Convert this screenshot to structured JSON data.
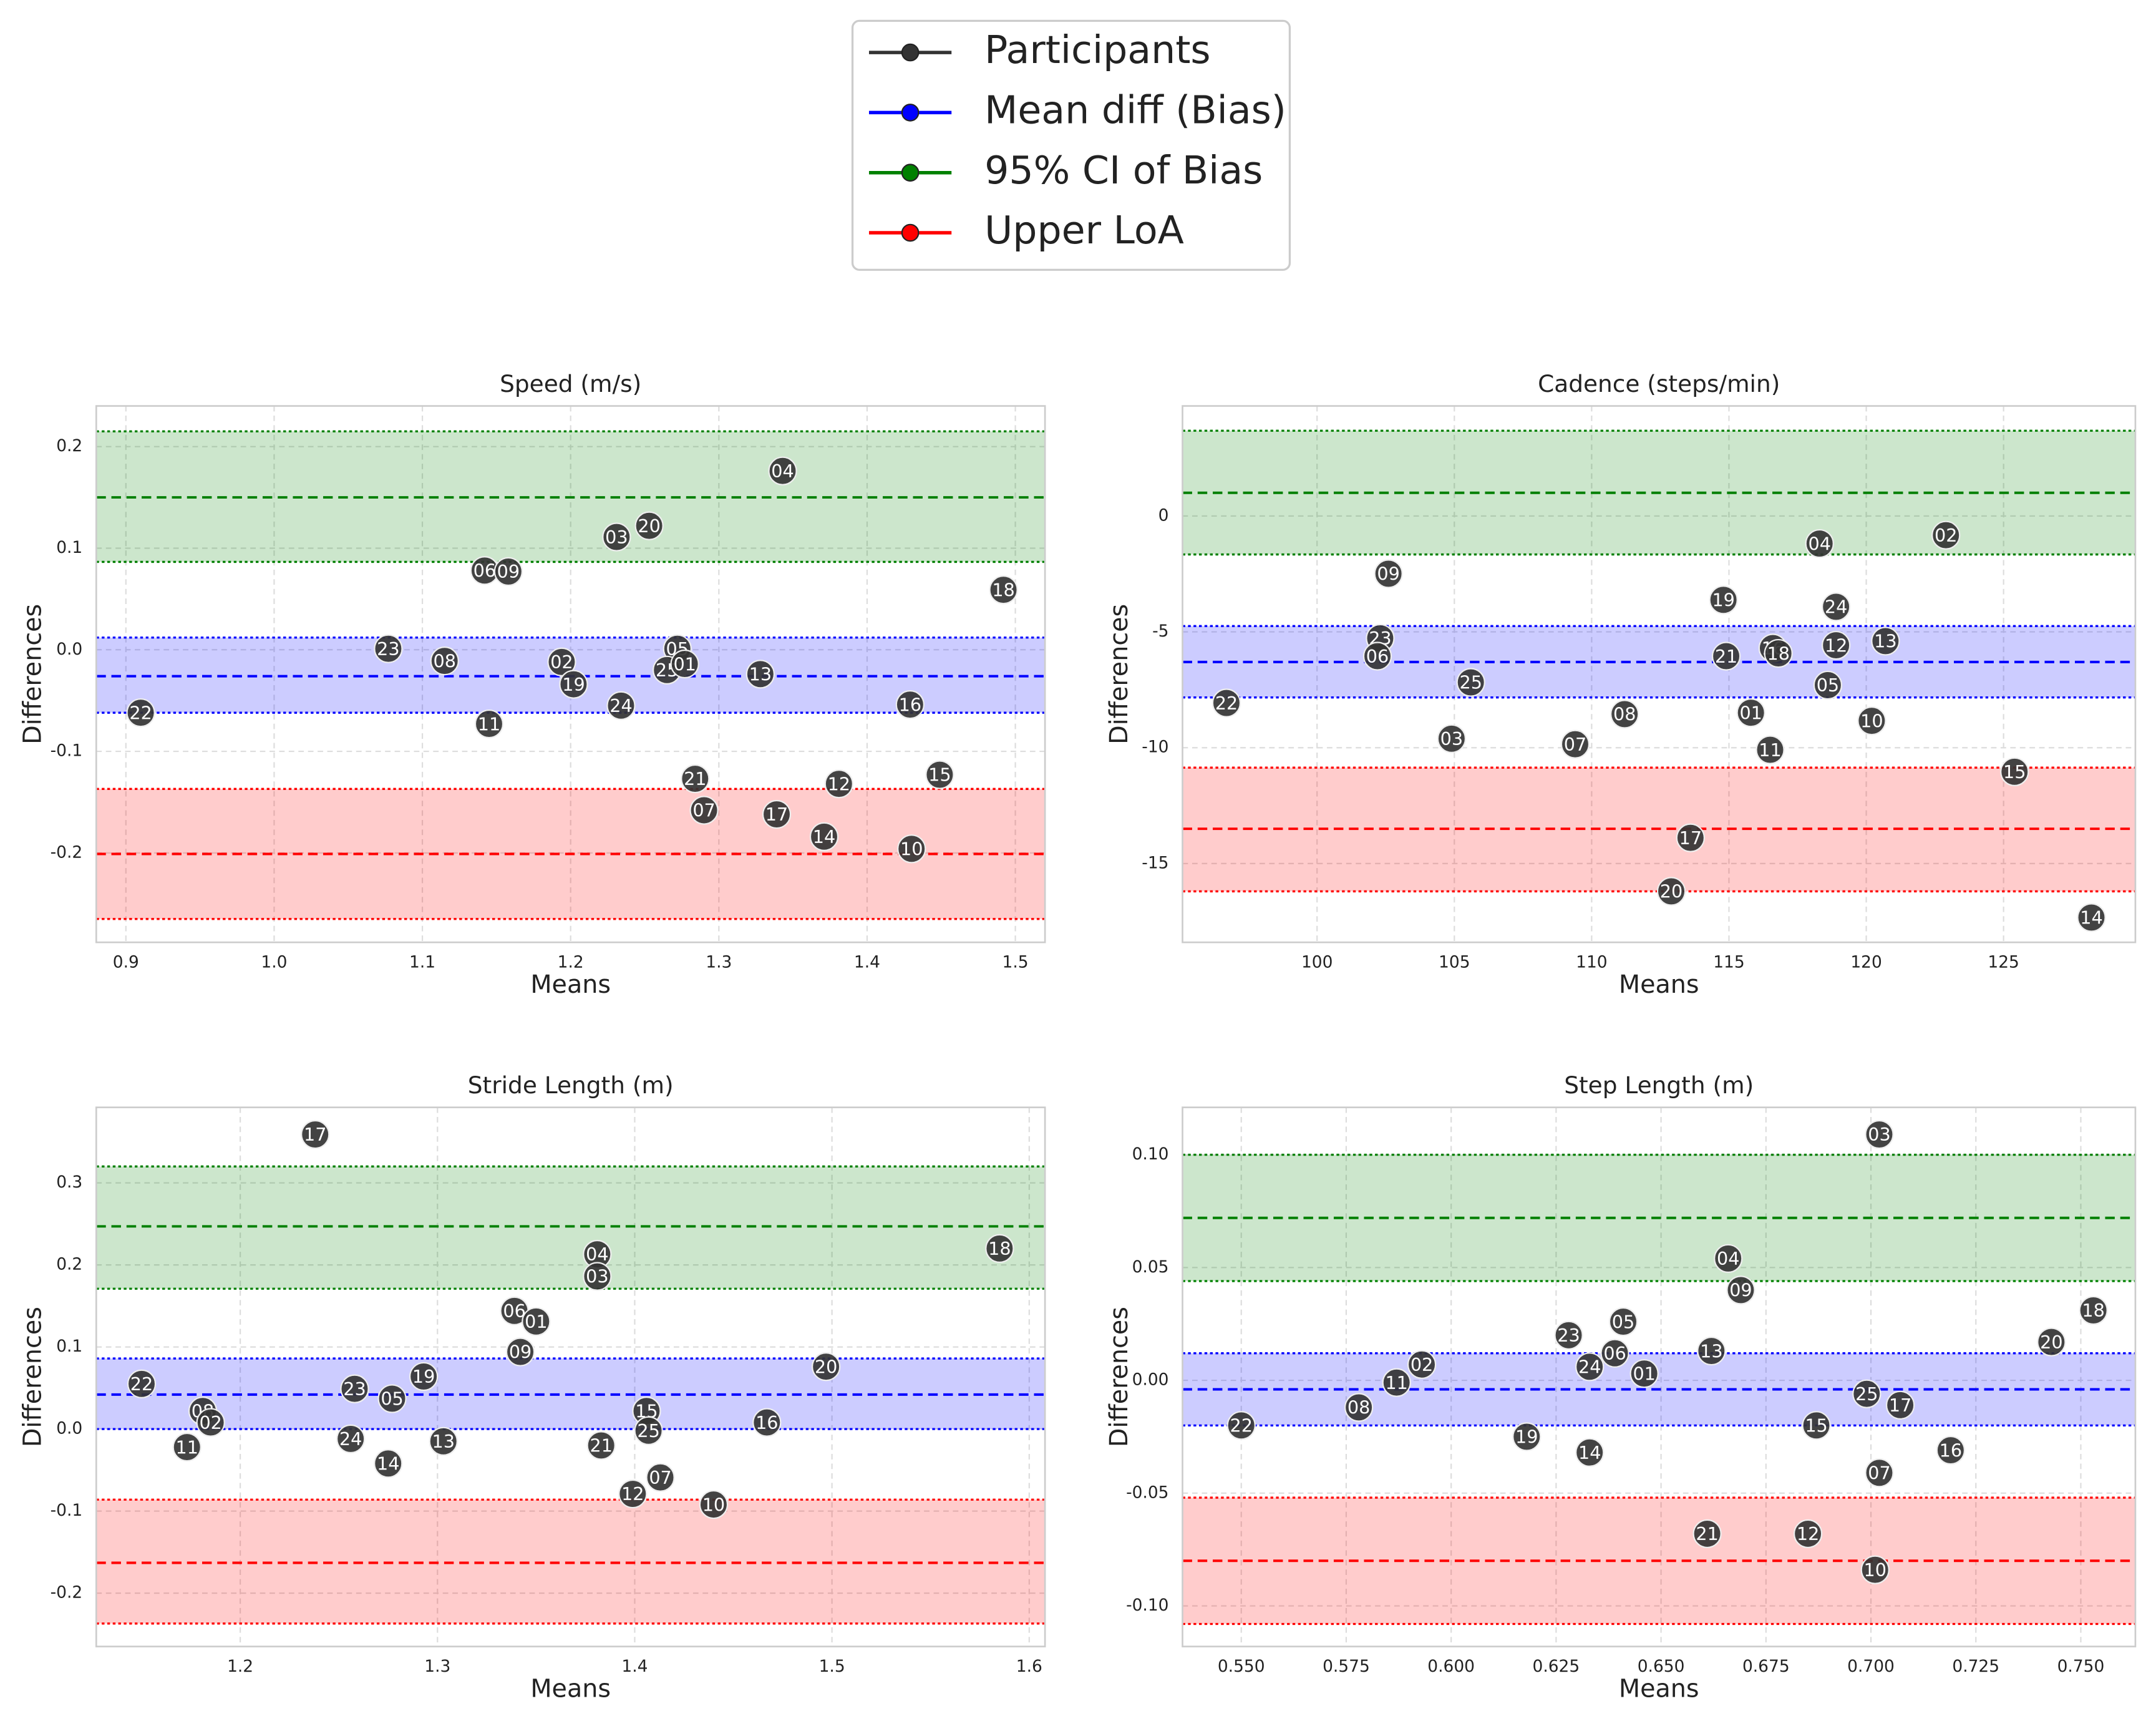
{
  "legend": [
    {
      "name": "Participants",
      "color": "#333333"
    },
    {
      "name": "Mean diff (Bias)",
      "color": "#0000ff"
    },
    {
      "name": "95% CI of Bias",
      "color": "#008000"
    },
    {
      "name": "Upper LoA",
      "color": "#ff0000"
    }
  ],
  "chart_data": [
    {
      "type": "scatter",
      "title": "Speed (m/s)",
      "xlabel": "Means",
      "ylabel": "Differences",
      "xlim": [
        0.88,
        1.52
      ],
      "ylim": [
        -0.288,
        0.24
      ],
      "xticks": [
        0.9,
        {
          "value": 1,
          "label": "1.0"
        },
        1.1,
        1.2,
        1.3,
        1.4,
        1.5
      ],
      "yticks": [
        0.2,
        0.1,
        {
          "value": 0,
          "label": "0.0"
        },
        -0.1,
        -0.2
      ],
      "grid": true,
      "point_color": "#333333",
      "bands": [
        {
          "color": "#008000",
          "lower": 0.0865,
          "mean": 0.15,
          "upper": 0.215
        },
        {
          "color": "#0000ff",
          "lower": -0.062,
          "mean": -0.026,
          "upper": 0.012
        },
        {
          "color": "#ff0000",
          "lower": -0.265,
          "mean": -0.201,
          "upper": -0.137
        }
      ],
      "labels": [
        "22",
        "23",
        "08",
        "06",
        "09",
        "11",
        "02",
        "19",
        "24",
        "03",
        "20",
        "05",
        "25",
        "01",
        "13",
        "04",
        "21",
        "07",
        "17",
        "12",
        "14",
        "10",
        "16",
        "15",
        "18"
      ],
      "x": [
        0.91,
        1.077,
        1.115,
        1.142,
        1.158,
        1.145,
        1.194,
        1.202,
        1.234,
        1.231,
        1.253,
        1.272,
        1.265,
        1.277,
        1.328,
        1.343,
        1.284,
        1.29,
        1.339,
        1.381,
        1.371,
        1.43,
        1.429,
        1.449,
        1.492
      ],
      "y": [
        -0.062,
        0.001,
        -0.011,
        0.078,
        0.077,
        -0.073,
        -0.012,
        -0.034,
        -0.055,
        0.111,
        0.122,
        0.001,
        -0.02,
        -0.014,
        -0.024,
        0.176,
        -0.127,
        -0.158,
        -0.162,
        -0.132,
        -0.184,
        -0.196,
        -0.054,
        -0.123,
        0.059
      ]
    },
    {
      "type": "scatter",
      "title": "Cadence (steps/min)",
      "xlabel": "Means",
      "ylabel": "Differences",
      "xlim": [
        95.1,
        129.8
      ],
      "ylim": [
        -18.4,
        4.75
      ],
      "xticks": [
        100,
        105,
        110,
        115,
        120,
        125
      ],
      "yticks": [
        0,
        -5,
        -10,
        -15
      ],
      "grid": true,
      "point_color": "#333333",
      "bands": [
        {
          "color": "#008000",
          "lower": -1.66,
          "mean": 1.0,
          "upper": 3.68
        },
        {
          "color": "#0000ff",
          "lower": -7.83,
          "mean": -6.3,
          "upper": -4.75
        },
        {
          "color": "#ff0000",
          "lower": -16.2,
          "mean": -13.5,
          "upper": -10.86
        }
      ],
      "labels": [
        "22",
        "09",
        "23",
        "06",
        "25",
        "03",
        "07",
        "08",
        "19",
        "21",
        "16",
        "18",
        "01",
        "11",
        "17",
        "20",
        "04",
        "02",
        "24",
        "12",
        "13",
        "05",
        "10",
        "15",
        "14"
      ],
      "x": [
        96.7,
        102.6,
        102.3,
        102.2,
        105.6,
        104.9,
        109.4,
        111.2,
        114.8,
        114.9,
        116.6,
        116.8,
        115.8,
        116.5,
        113.6,
        112.9,
        118.3,
        122.9,
        118.9,
        118.9,
        120.7,
        118.6,
        120.2,
        125.4,
        128.2
      ],
      "y": [
        -8.07,
        -2.49,
        -5.28,
        -6.05,
        -7.18,
        -9.61,
        -9.85,
        -8.55,
        -3.62,
        -6.05,
        -5.7,
        -5.93,
        -8.49,
        -10.09,
        -13.89,
        -16.2,
        -1.19,
        -0.83,
        -3.92,
        -5.58,
        -5.4,
        -7.3,
        -8.84,
        -11.04,
        -17.33
      ]
    },
    {
      "type": "scatter",
      "title": "Stride Length (m)",
      "xlabel": "Means",
      "ylabel": "Differences",
      "xlim": [
        1.127,
        1.608
      ],
      "ylim": [
        -0.265,
        0.392
      ],
      "xticks": [
        1.2,
        1.3,
        1.4,
        1.5,
        1.6
      ],
      "yticks": [
        0.3,
        0.2,
        0.1,
        {
          "value": 0,
          "label": "0.0"
        },
        -0.1,
        -0.2
      ],
      "grid": true,
      "point_color": "#333333",
      "bands": [
        {
          "color": "#008000",
          "lower": 0.171,
          "mean": 0.247,
          "upper": 0.32
        },
        {
          "color": "#0000ff",
          "lower": 0.0,
          "mean": 0.042,
          "upper": 0.086
        },
        {
          "color": "#ff0000",
          "lower": -0.237,
          "mean": -0.163,
          "upper": -0.086
        }
      ],
      "labels": [
        "22",
        "08",
        "02",
        "11",
        "17",
        "23",
        "24",
        "05",
        "19",
        "14",
        "13",
        "06",
        "01",
        "09",
        "04",
        "03",
        "21",
        "15",
        "25",
        "12",
        "07",
        "10",
        "16",
        "20",
        "18"
      ],
      "x": [
        1.15,
        1.181,
        1.185,
        1.173,
        1.238,
        1.258,
        1.256,
        1.277,
        1.293,
        1.275,
        1.303,
        1.339,
        1.35,
        1.342,
        1.381,
        1.381,
        1.383,
        1.406,
        1.407,
        1.399,
        1.413,
        1.44,
        1.467,
        1.497,
        1.585
      ],
      "y": [
        0.055,
        0.022,
        0.008,
        -0.022,
        0.359,
        0.049,
        -0.012,
        0.037,
        0.064,
        -0.042,
        -0.015,
        0.144,
        0.131,
        0.094,
        0.213,
        0.186,
        -0.02,
        0.022,
        -0.002,
        -0.079,
        -0.059,
        -0.092,
        0.008,
        0.076,
        0.22
      ]
    },
    {
      "type": "scatter",
      "title": "Step Length (m)",
      "xlabel": "Means",
      "ylabel": "Differences",
      "xlim": [
        0.536,
        0.763
      ],
      "ylim": [
        -0.118,
        0.121
      ],
      "xticks": [
        {
          "value": 0.55,
          "label": "0.550"
        },
        0.575,
        {
          "value": 0.6,
          "label": "0.600"
        },
        0.625,
        {
          "value": 0.65,
          "label": "0.650"
        },
        0.675,
        {
          "value": 0.7,
          "label": "0.700"
        },
        0.725,
        {
          "value": 0.75,
          "label": "0.750"
        }
      ],
      "yticks": [
        {
          "value": 0.1,
          "label": "0.10"
        },
        0.05,
        {
          "value": 0,
          "label": "0.00"
        },
        -0.05,
        {
          "value": -0.1,
          "label": "-0.10"
        }
      ],
      "grid": true,
      "point_color": "#333333",
      "bands": [
        {
          "color": "#008000",
          "lower": 0.044,
          "mean": 0.072,
          "upper": 0.1
        },
        {
          "color": "#0000ff",
          "lower": -0.02,
          "mean": -0.004,
          "upper": 0.012
        },
        {
          "color": "#ff0000",
          "lower": -0.108,
          "mean": -0.08,
          "upper": -0.052
        }
      ],
      "labels": [
        "22",
        "08",
        "11",
        "02",
        "19",
        "23",
        "24",
        "14",
        "06",
        "05",
        "01",
        "13",
        "04",
        "09",
        "21",
        "12",
        "03",
        "15",
        "25",
        "17",
        "07",
        "10",
        "16",
        "20",
        "18"
      ],
      "x": [
        0.55,
        0.578,
        0.587,
        0.593,
        0.618,
        0.628,
        0.633,
        0.633,
        0.639,
        0.641,
        0.646,
        0.662,
        0.666,
        0.669,
        0.661,
        0.685,
        0.702,
        0.687,
        0.699,
        0.707,
        0.702,
        0.701,
        0.719,
        0.743,
        0.753
      ],
      "y": [
        -0.02,
        -0.012,
        -0.001,
        0.007,
        -0.025,
        0.02,
        0.006,
        -0.032,
        0.012,
        0.026,
        0.003,
        0.013,
        0.054,
        0.04,
        -0.068,
        -0.068,
        0.109,
        -0.02,
        -0.006,
        -0.011,
        -0.041,
        -0.084,
        -0.031,
        0.017,
        0.031
      ]
    }
  ]
}
